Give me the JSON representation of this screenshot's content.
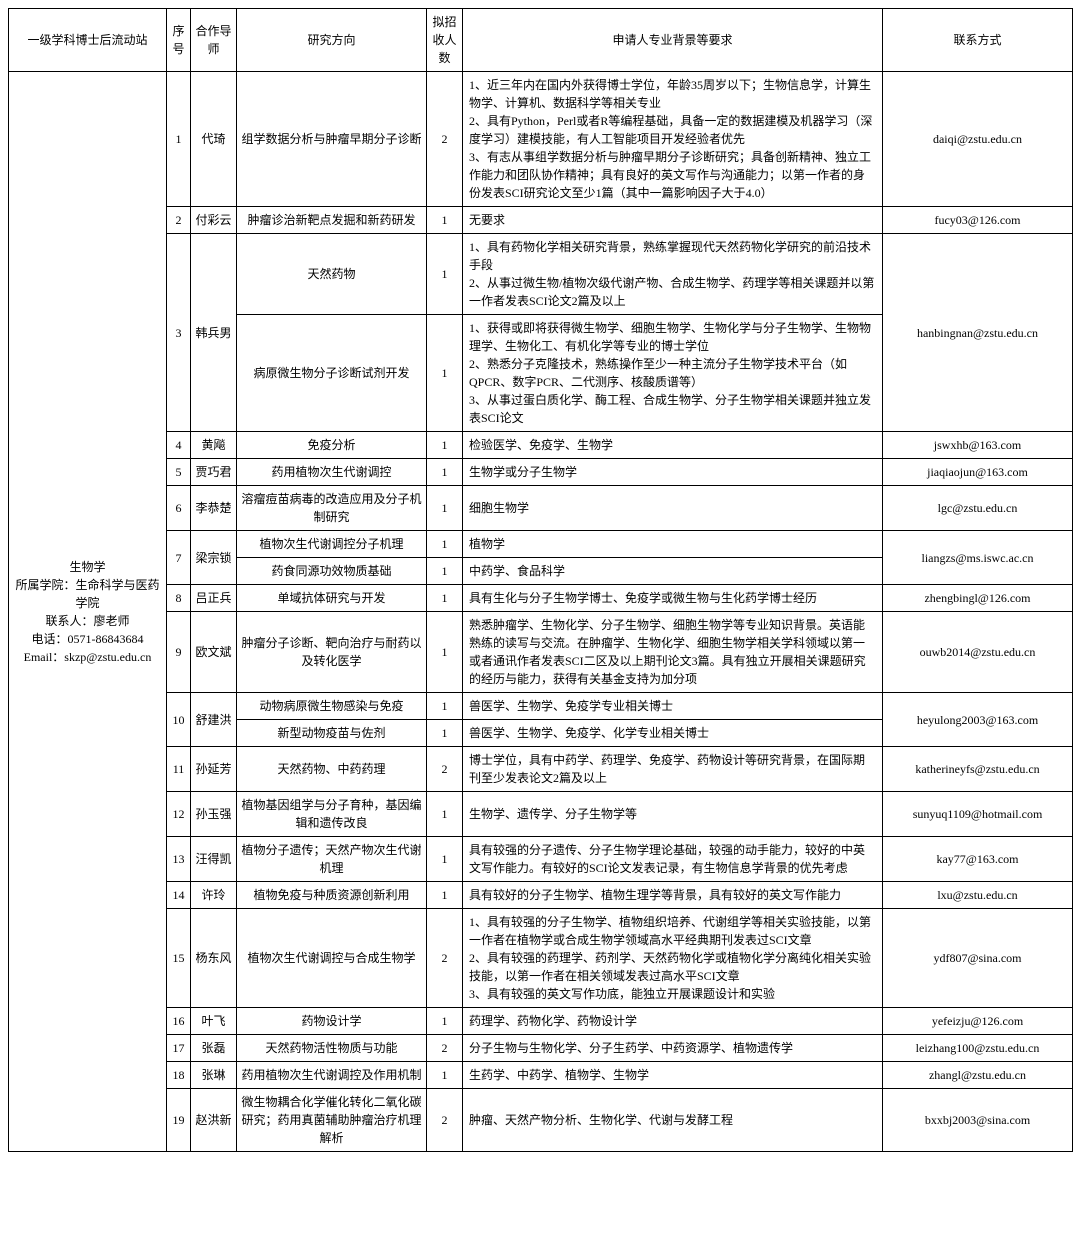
{
  "columns": {
    "station": "一级学科博士后流动站",
    "idx": "序号",
    "advisor": "合作导师",
    "direction": "研究方向",
    "num": "拟招收人数",
    "requirements": "申请人专业背景等要求",
    "contact": "联系方式"
  },
  "col_widths": {
    "station": 158,
    "idx": 24,
    "advisor": 46,
    "direction": 190,
    "num": 36,
    "requirements": 420,
    "contact": 190
  },
  "station": {
    "name": "生物学",
    "affiliation": "所属学院：生命科学与医药学院",
    "contact_person": "联系人：廖老师",
    "phone": "电话：0571-86843684",
    "email": "Email：skzp@zstu.edu.cn"
  },
  "rows": [
    {
      "idx": "1",
      "advisor": "代琦",
      "direction": "组学数据分析与肿瘤早期分子诊断",
      "num": "2",
      "requirements": "1、近三年内在国内外获得博士学位，年龄35周岁以下；生物信息学，计算生物学、计算机、数据科学等相关专业\n2、具有Python，Perl或者R等编程基础，具备一定的数据建模及机器学习（深度学习）建模技能，有人工智能项目开发经验者优先\n3、有志从事组学数据分析与肿瘤早期分子诊断研究；具备创新精神、独立工作能力和团队协作精神；具有良好的英文写作与沟通能力；以第一作者的身份发表SCI研究论文至少1篇（其中一篇影响因子大于4.0）",
      "contact": "daiqi@zstu.edu.cn"
    },
    {
      "idx": "2",
      "advisor": "付彩云",
      "direction": "肿瘤诊治新靶点发掘和新药研发",
      "num": "1",
      "requirements": "无要求",
      "contact": "fucy03@126.com"
    },
    {
      "idx": "3",
      "advisor": "韩兵男",
      "contact": "hanbingnan@zstu.edu.cn",
      "sub": [
        {
          "direction": "天然药物",
          "num": "1",
          "requirements": "1、具有药物化学相关研究背景，熟练掌握现代天然药物化学研究的前沿技术手段\n2、从事过微生物/植物次级代谢产物、合成生物学、药理学等相关课题并以第一作者发表SCI论文2篇及以上"
        },
        {
          "direction": "病原微生物分子诊断试剂开发",
          "num": "1",
          "requirements": "1、获得或即将获得微生物学、细胞生物学、生物化学与分子生物学、生物物理学、生物化工、有机化学等专业的博士学位\n2、熟悉分子克隆技术，熟练操作至少一种主流分子生物学技术平台（如QPCR、数字PCR、二代测序、核酸质谱等）\n3、从事过蛋白质化学、酶工程、合成生物学、分子生物学相关课题并独立发表SCI论文"
        }
      ]
    },
    {
      "idx": "4",
      "advisor": "黄飚",
      "direction": "免疫分析",
      "num": "1",
      "requirements": "检验医学、免疫学、生物学",
      "contact": "jswxhb@163.com"
    },
    {
      "idx": "5",
      "advisor": "贾巧君",
      "direction": "药用植物次生代谢调控",
      "num": "1",
      "requirements": "生物学或分子生物学",
      "contact": "jiaqiaojun@163.com"
    },
    {
      "idx": "6",
      "advisor": "李恭楚",
      "direction": "溶瘤痘苗病毒的改造应用及分子机制研究",
      "num": "1",
      "requirements": "细胞生物学",
      "contact": "lgc@zstu.edu.cn"
    },
    {
      "idx": "7",
      "advisor": "梁宗锁",
      "contact": "liangzs@ms.iswc.ac.cn",
      "sub": [
        {
          "direction": "植物次生代谢调控分子机理",
          "num": "1",
          "requirements": "植物学"
        },
        {
          "direction": "药食同源功效物质基础",
          "num": "1",
          "requirements": "中药学、食品科学"
        }
      ]
    },
    {
      "idx": "8",
      "advisor": "吕正兵",
      "direction": "单域抗体研究与开发",
      "num": "1",
      "requirements": "具有生化与分子生物学博士、免疫学或微生物与生化药学博士经历",
      "contact": "zhengbingl@126.com"
    },
    {
      "idx": "9",
      "advisor": "欧文斌",
      "direction": "肿瘤分子诊断、靶向治疗与耐药以及转化医学",
      "num": "1",
      "requirements": "熟悉肿瘤学、生物化学、分子生物学、细胞生物学等专业知识背景。英语能熟练的读写与交流。在肿瘤学、生物化学、细胞生物学相关学科领域以第一或者通讯作者发表SCI二区及以上期刊论文3篇。具有独立开展相关课题研究的经历与能力，获得有关基金支持为加分项",
      "contact": "ouwb2014@zstu.edu.cn"
    },
    {
      "idx": "10",
      "advisor": "舒建洪",
      "contact": "heyulong2003@163.com",
      "sub": [
        {
          "direction": "动物病原微生物感染与免疫",
          "num": "1",
          "requirements": "兽医学、生物学、免疫学专业相关博士"
        },
        {
          "direction": "新型动物疫苗与佐剂",
          "num": "1",
          "requirements": "兽医学、生物学、免疫学、化学专业相关博士"
        }
      ]
    },
    {
      "idx": "11",
      "advisor": "孙延芳",
      "direction": "天然药物、中药药理",
      "num": "2",
      "requirements": "博士学位，具有中药学、药理学、免疫学、药物设计等研究背景，在国际期刊至少发表论文2篇及以上",
      "contact": "katherineyfs@zstu.edu.cn"
    },
    {
      "idx": "12",
      "advisor": "孙玉强",
      "direction": "植物基因组学与分子育种，基因编辑和遗传改良",
      "num": "1",
      "requirements": "生物学、遗传学、分子生物学等",
      "contact": "sunyuq1109@hotmail.com"
    },
    {
      "idx": "13",
      "advisor": "汪得凯",
      "direction": "植物分子遗传；天然产物次生代谢机理",
      "num": "1",
      "requirements": "具有较强的分子遗传、分子生物学理论基础，较强的动手能力，较好的中英文写作能力。有较好的SCI论文发表记录，有生物信息学背景的优先考虑",
      "contact": "kay77@163.com"
    },
    {
      "idx": "14",
      "advisor": "许玲",
      "direction": "植物免疫与种质资源创新利用",
      "num": "1",
      "requirements": "具有较好的分子生物学、植物生理学等背景，具有较好的英文写作能力",
      "contact": "lxu@zstu.edu.cn"
    },
    {
      "idx": "15",
      "advisor": "杨东风",
      "direction": "植物次生代谢调控与合成生物学",
      "num": "2",
      "requirements": "1、具有较强的分子生物学、植物组织培养、代谢组学等相关实验技能，以第一作者在植物学或合成生物学领域高水平经典期刊发表过SCI文章\n2、具有较强的药理学、药剂学、天然药物化学或植物化学分离纯化相关实验技能，以第一作者在相关领域发表过高水平SCI文章\n3、具有较强的英文写作功底，能独立开展课题设计和实验",
      "contact": "ydf807@sina.com"
    },
    {
      "idx": "16",
      "advisor": "叶飞",
      "direction": "药物设计学",
      "num": "1",
      "requirements": "药理学、药物化学、药物设计学",
      "contact": "yefeizju@126.com"
    },
    {
      "idx": "17",
      "advisor": "张磊",
      "direction": "天然药物活性物质与功能",
      "num": "2",
      "requirements": "分子生物与生物化学、分子生药学、中药资源学、植物遗传学",
      "contact": "leizhang100@zstu.edu.cn"
    },
    {
      "idx": "18",
      "advisor": "张琳",
      "direction": "药用植物次生代谢调控及作用机制",
      "num": "1",
      "requirements": "生药学、中药学、植物学、生物学",
      "contact": "zhangl@zstu.edu.cn"
    },
    {
      "idx": "19",
      "advisor": "赵洪新",
      "direction": "微生物耦合化学催化转化二氧化碳研究；药用真菌辅助肿瘤治疗机理解析",
      "num": "2",
      "requirements": "肿瘤、天然产物分析、生物化学、代谢与发酵工程",
      "contact": "bxxbj2003@sina.com"
    }
  ]
}
